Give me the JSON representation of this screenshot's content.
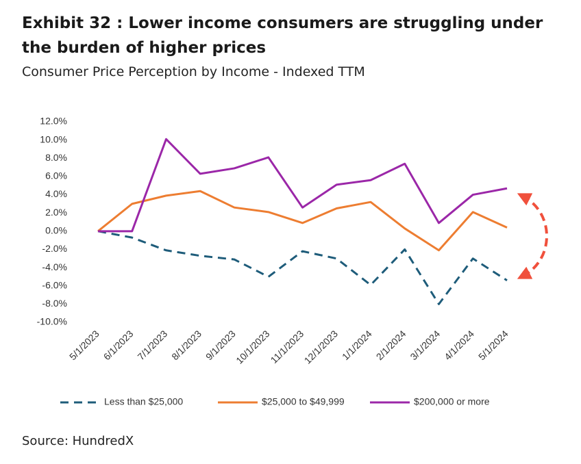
{
  "chart_data": {
    "type": "line",
    "title": "Exhibit 32 : Lower income consumers are struggling under the burden of higher prices",
    "subtitle": "Consumer Price Perception by Income - Indexed TTM",
    "source": "Source: HundredX",
    "categories": [
      "5/1/2023",
      "6/1/2023",
      "7/1/2023",
      "8/1/2023",
      "9/1/2023",
      "10/1/2023",
      "11/1/2023",
      "12/1/2023",
      "1/1/2024",
      "2/1/2024",
      "3/1/2024",
      "4/1/2024",
      "5/1/2024"
    ],
    "series": [
      {
        "name": "Less than $25,000",
        "color": "#1e5c7a",
        "style": "dashed",
        "values": [
          0,
          -0.7,
          -2.1,
          -2.7,
          -3.1,
          -5.0,
          -2.2,
          -3.0,
          -5.9,
          -2.0,
          -8.0,
          -3.0,
          -5.4
        ]
      },
      {
        "name": "$25,000 to $49,999",
        "color": "#ed7d31",
        "style": "solid",
        "values": [
          0,
          3.0,
          3.9,
          4.4,
          2.6,
          2.1,
          0.9,
          2.5,
          3.2,
          0.3,
          -2.1,
          2.1,
          0.4
        ]
      },
      {
        "name": "$200,000 or more",
        "color": "#9b27a8",
        "style": "solid",
        "values": [
          0,
          0,
          10.1,
          6.3,
          6.9,
          8.1,
          2.6,
          5.1,
          5.6,
          7.4,
          0.9,
          4.0,
          4.7
        ]
      }
    ],
    "ylim": [
      -10,
      12
    ],
    "yticks": [
      {
        "value": 12,
        "label": "12.0%"
      },
      {
        "value": 10,
        "label": "10.0%"
      },
      {
        "value": 8,
        "label": "8.0%"
      },
      {
        "value": 6,
        "label": "6.0%"
      },
      {
        "value": 4,
        "label": "4.0%"
      },
      {
        "value": 2,
        "label": "2.0%"
      },
      {
        "value": 0,
        "label": "0.0%"
      },
      {
        "value": -2,
        "label": "-2.0%"
      },
      {
        "value": -4,
        "label": "-4.0%"
      },
      {
        "value": -6,
        "label": "-6.0%"
      },
      {
        "value": -8,
        "label": "-8.0%"
      },
      {
        "value": -10,
        "label": "-10.0%"
      }
    ],
    "grid": false,
    "legend": "bottom"
  }
}
